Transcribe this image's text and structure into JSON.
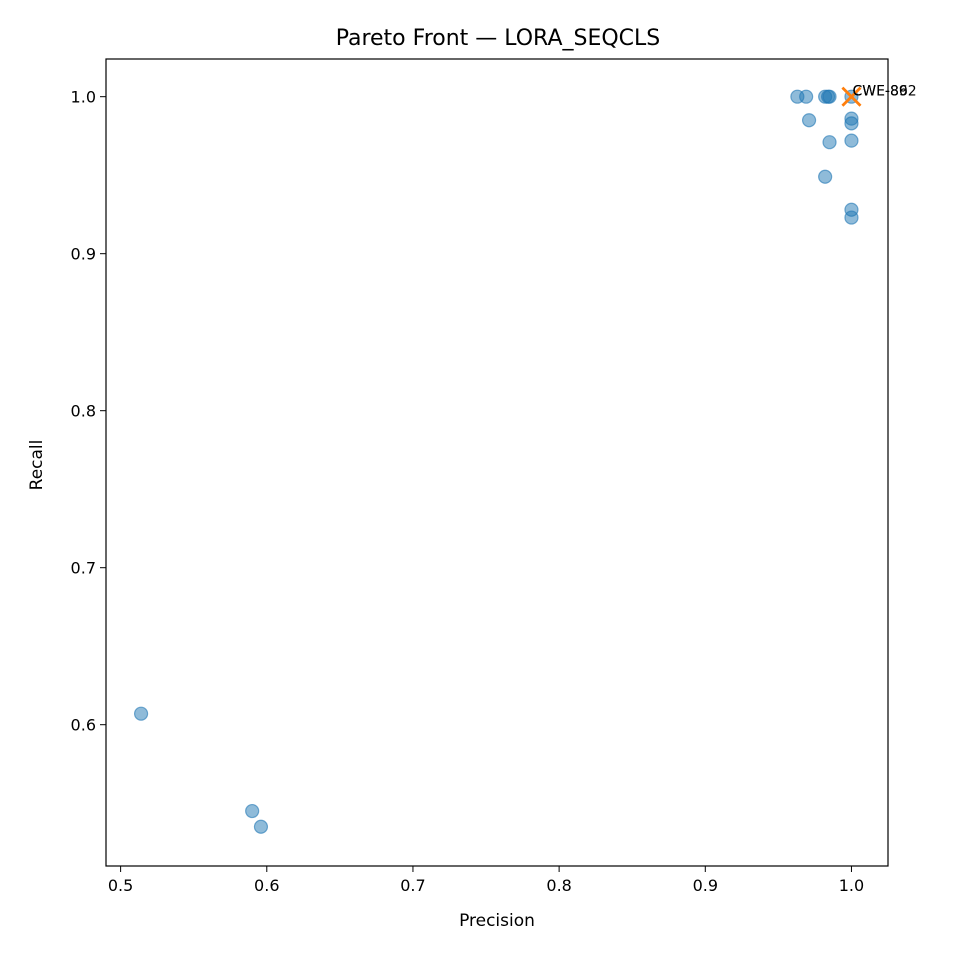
{
  "chart_data": {
    "type": "scatter",
    "title": "Pareto Front — LORA_SEQCLS",
    "xlabel": "Precision",
    "ylabel": "Recall",
    "xlim": [
      0.49,
      1.025
    ],
    "ylim": [
      0.51,
      1.024
    ],
    "xticks": [
      0.5,
      0.6,
      0.7,
      0.8,
      0.9,
      1.0
    ],
    "yticks": [
      0.6,
      0.7,
      0.8,
      0.9,
      1.0
    ],
    "xtick_labels": [
      "0.5",
      "0.6",
      "0.7",
      "0.8",
      "0.9",
      "1.0"
    ],
    "ytick_labels": [
      "0.6",
      "0.7",
      "0.8",
      "0.9",
      "1.0"
    ],
    "grid": false,
    "colors": {
      "points": "#1f77b4",
      "pareto": "#ff7f0e"
    },
    "series": [
      {
        "marker": "circle",
        "points": [
          {
            "x": 0.963,
            "y": 1.0
          },
          {
            "x": 0.969,
            "y": 1.0
          },
          {
            "x": 0.982,
            "y": 1.0
          },
          {
            "x": 0.984,
            "y": 1.0
          },
          {
            "x": 0.985,
            "y": 1.0
          },
          {
            "x": 1.0,
            "y": 1.0
          },
          {
            "x": 0.971,
            "y": 0.985
          },
          {
            "x": 1.0,
            "y": 0.986
          },
          {
            "x": 1.0,
            "y": 0.983
          },
          {
            "x": 0.985,
            "y": 0.971
          },
          {
            "x": 1.0,
            "y": 0.972
          },
          {
            "x": 0.982,
            "y": 0.949
          },
          {
            "x": 1.0,
            "y": 0.928
          },
          {
            "x": 1.0,
            "y": 0.923
          },
          {
            "x": 0.514,
            "y": 0.607
          },
          {
            "x": 0.59,
            "y": 0.545
          },
          {
            "x": 0.596,
            "y": 0.535
          }
        ]
      },
      {
        "marker": "x",
        "points": [
          {
            "x": 1.0,
            "y": 1.0,
            "label": "CWE-89"
          },
          {
            "x": 1.0,
            "y": 1.0,
            "label": "CWE-862"
          }
        ]
      }
    ]
  }
}
